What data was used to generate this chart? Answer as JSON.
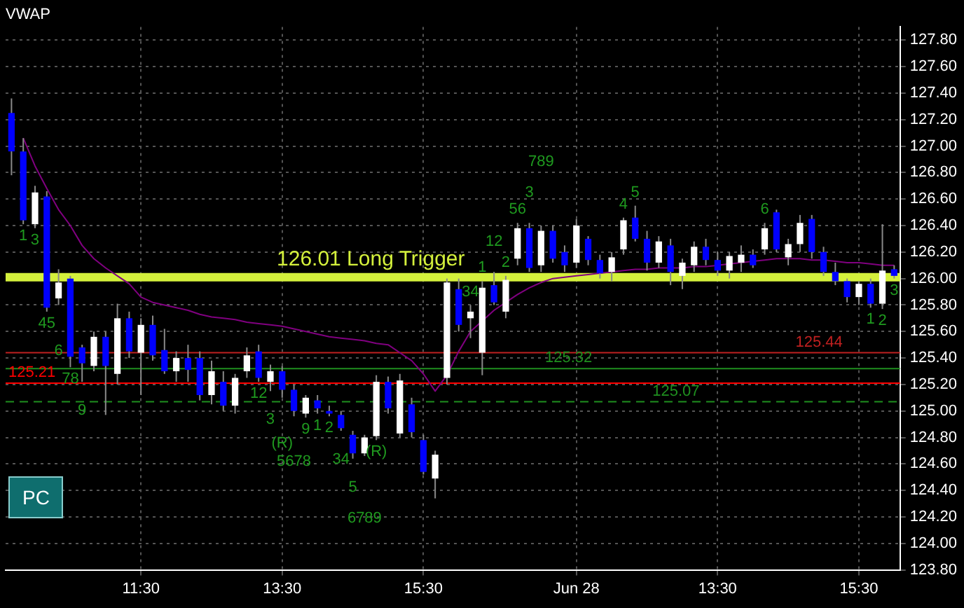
{
  "chart_data": {
    "type": "candlestick",
    "title": "VWAP",
    "categories": [
      null,
      null,
      null,
      null,
      null,
      null,
      null,
      null,
      null,
      null,
      null,
      "11:30",
      null,
      null,
      null,
      null,
      null,
      null,
      null,
      null,
      null,
      null,
      null,
      "13:30",
      null,
      null,
      null,
      null,
      null,
      null,
      null,
      null,
      null,
      null,
      null,
      "15:30",
      null,
      null,
      null,
      null,
      null,
      null,
      null,
      null,
      null,
      null,
      null,
      null,
      "Jun 28",
      null,
      null,
      null,
      null,
      null,
      null,
      null,
      null,
      null,
      null,
      null,
      "13:30",
      null,
      null,
      null,
      null,
      null,
      null,
      null,
      null,
      null,
      null,
      null,
      "15:30",
      null,
      null,
      null
    ],
    "ohlc": [
      [
        127.25,
        127.36,
        126.78,
        126.96
      ],
      [
        126.96,
        127.06,
        126.41,
        126.44
      ],
      [
        126.41,
        126.7,
        126.38,
        126.65
      ],
      [
        126.62,
        126.66,
        125.75,
        125.78
      ],
      [
        125.85,
        126.07,
        125.8,
        125.97
      ],
      [
        126.0,
        126.02,
        125.33,
        125.41
      ],
      [
        125.48,
        125.5,
        125.22,
        125.36
      ],
      [
        125.34,
        125.6,
        125.3,
        125.56
      ],
      [
        125.56,
        125.6,
        124.97,
        125.34
      ],
      [
        125.28,
        125.81,
        125.2,
        125.7
      ],
      [
        125.7,
        125.75,
        125.4,
        125.45
      ],
      [
        125.44,
        125.7,
        125.12,
        125.65
      ],
      [
        125.65,
        125.72,
        125.38,
        125.42
      ],
      [
        125.46,
        125.62,
        125.28,
        125.3
      ],
      [
        125.3,
        125.45,
        125.22,
        125.4
      ],
      [
        125.4,
        125.5,
        125.22,
        125.31
      ],
      [
        125.4,
        125.45,
        125.08,
        125.12
      ],
      [
        125.12,
        125.38,
        125.05,
        125.3
      ],
      [
        125.22,
        125.3,
        125.0,
        125.04
      ],
      [
        125.04,
        125.28,
        124.98,
        125.25
      ],
      [
        125.3,
        125.48,
        125.25,
        125.42
      ],
      [
        125.45,
        125.5,
        125.22,
        125.25
      ],
      [
        125.22,
        125.35,
        125.15,
        125.3
      ],
      [
        125.3,
        125.34,
        125.1,
        125.16
      ],
      [
        125.16,
        125.2,
        124.96,
        125.0
      ],
      [
        124.98,
        125.12,
        124.95,
        125.1
      ],
      [
        125.08,
        125.12,
        124.98,
        125.02
      ],
      [
        125.0,
        125.04,
        124.96,
        124.98
      ],
      [
        124.97,
        125.0,
        124.85,
        124.87
      ],
      [
        124.82,
        124.85,
        124.64,
        124.68
      ],
      [
        124.68,
        124.82,
        124.66,
        124.8
      ],
      [
        124.81,
        125.27,
        124.78,
        125.22
      ],
      [
        125.22,
        125.26,
        124.98,
        125.02
      ],
      [
        124.83,
        125.28,
        124.8,
        125.23
      ],
      [
        125.05,
        125.1,
        124.8,
        124.84
      ],
      [
        124.78,
        124.82,
        124.52,
        124.54
      ],
      [
        124.49,
        124.7,
        124.34,
        124.67
      ],
      [
        125.25,
        126.0,
        125.2,
        125.97
      ],
      [
        125.92,
        126.0,
        125.6,
        125.65
      ],
      [
        125.7,
        125.8,
        125.55,
        125.75
      ],
      [
        125.44,
        125.98,
        125.27,
        125.93
      ],
      [
        125.95,
        126.05,
        125.8,
        125.82
      ],
      [
        125.75,
        126.02,
        125.7,
        125.99
      ],
      [
        126.15,
        126.42,
        126.1,
        126.38
      ],
      [
        126.38,
        126.42,
        126.05,
        126.08
      ],
      [
        126.1,
        126.4,
        126.05,
        126.36
      ],
      [
        126.36,
        126.4,
        126.12,
        126.15
      ],
      [
        126.2,
        126.25,
        126.05,
        126.1
      ],
      [
        126.12,
        126.45,
        126.08,
        126.4
      ],
      [
        126.3,
        126.32,
        126.1,
        126.14
      ],
      [
        126.14,
        126.18,
        126.0,
        126.04
      ],
      [
        126.05,
        126.2,
        125.98,
        126.16
      ],
      [
        126.22,
        126.46,
        126.18,
        126.44
      ],
      [
        126.46,
        126.55,
        126.28,
        126.3
      ],
      [
        126.3,
        126.36,
        126.06,
        126.12
      ],
      [
        126.12,
        126.32,
        126.08,
        126.28
      ],
      [
        126.25,
        126.3,
        125.95,
        126.05
      ],
      [
        126.02,
        126.15,
        125.92,
        126.12
      ],
      [
        126.1,
        126.28,
        126.05,
        126.24
      ],
      [
        126.24,
        126.3,
        126.1,
        126.14
      ],
      [
        126.14,
        126.2,
        126.02,
        126.06
      ],
      [
        126.06,
        126.2,
        126.0,
        126.17
      ],
      [
        126.12,
        126.25,
        126.05,
        126.18
      ],
      [
        126.18,
        126.22,
        126.08,
        126.1
      ],
      [
        126.22,
        126.42,
        126.18,
        126.38
      ],
      [
        126.5,
        126.52,
        126.2,
        126.22
      ],
      [
        126.16,
        126.3,
        126.1,
        126.26
      ],
      [
        126.26,
        126.48,
        126.2,
        126.42
      ],
      [
        126.45,
        126.48,
        126.15,
        126.2
      ],
      [
        126.2,
        126.24,
        126.02,
        126.05
      ],
      [
        126.05,
        126.12,
        125.95,
        125.98
      ],
      [
        125.98,
        126.0,
        125.82,
        125.86
      ],
      [
        125.86,
        125.98,
        125.8,
        125.96
      ],
      [
        125.96,
        126.0,
        125.78,
        125.81
      ],
      [
        125.81,
        126.41,
        125.77,
        126.06
      ],
      [
        126.07,
        126.1,
        126.0,
        126.02
      ]
    ],
    "colors": [
      "#0000ff",
      "#0000ff",
      "#ffffff",
      "#0000ff",
      "#ffffff",
      "#0000ff",
      "#0000ff",
      "#ffffff",
      "#0000ff",
      "#ffffff",
      "#0000ff",
      "#ffffff",
      "#0000ff",
      "#0000ff",
      "#ffffff",
      "#0000ff",
      "#0000ff",
      "#ffffff",
      "#0000ff",
      "#ffffff",
      "#ffffff",
      "#0000ff",
      "#ffffff",
      "#0000ff",
      "#0000ff",
      "#ffffff",
      "#0000ff",
      "#0000ff",
      "#0000ff",
      "#0000ff",
      "#ffffff",
      "#ffffff",
      "#0000ff",
      "#ffffff",
      "#0000ff",
      "#0000ff",
      "#ffffff",
      "#ffffff",
      "#0000ff",
      "#ffffff",
      "#ffffff",
      "#0000ff",
      "#ffffff",
      "#ffffff",
      "#0000ff",
      "#ffffff",
      "#0000ff",
      "#0000ff",
      "#ffffff",
      "#0000ff",
      "#0000ff",
      "#ffffff",
      "#ffffff",
      "#0000ff",
      "#0000ff",
      "#ffffff",
      "#0000ff",
      "#ffffff",
      "#ffffff",
      "#0000ff",
      "#0000ff",
      "#ffffff",
      "#ffffff",
      "#0000ff",
      "#ffffff",
      "#0000ff",
      "#ffffff",
      "#ffffff",
      "#0000ff",
      "#0000ff",
      "#0000ff",
      "#0000ff",
      "#ffffff",
      "#0000ff",
      "#ffffff",
      "#0000ff"
    ],
    "value_labels": [
      null,
      "1",
      "3",
      "45",
      "6",
      "78",
      "9",
      null,
      null,
      null,
      null,
      null,
      null,
      null,
      null,
      null,
      null,
      null,
      null,
      null,
      null,
      "12",
      "3",
      "(R)",
      "5678",
      "9",
      "1",
      "2",
      "34",
      "5",
      "6789",
      "(R)",
      null,
      null,
      null,
      null,
      null,
      null,
      null,
      "34",
      "1",
      "12",
      "2",
      "56",
      "3",
      "789",
      null,
      null,
      null,
      null,
      null,
      null,
      "4",
      "5",
      null,
      null,
      null,
      null,
      null,
      null,
      null,
      null,
      null,
      null,
      "6",
      null,
      null,
      null,
      null,
      null,
      null,
      null,
      null,
      "1",
      "2",
      "3"
    ],
    "series": [
      {
        "type": "line",
        "color": "#800080",
        "values": [
          null,
          127.06,
          126.85,
          126.68,
          126.52,
          126.4,
          126.25,
          126.15,
          126.08,
          126.02,
          125.96,
          125.86,
          125.82,
          125.8,
          125.78,
          125.76,
          125.73,
          125.71,
          125.7,
          125.69,
          125.67,
          125.66,
          125.65,
          125.64,
          125.62,
          125.6,
          125.58,
          125.56,
          125.55,
          125.54,
          125.53,
          125.51,
          125.5,
          125.44,
          125.38,
          125.28,
          125.15,
          125.27,
          125.45,
          125.6,
          125.68,
          125.76,
          125.82,
          125.88,
          125.93,
          125.97,
          126.0,
          126.01,
          126.02,
          126.03,
          126.04,
          126.05,
          126.06,
          126.07,
          126.07,
          126.08,
          126.08,
          126.08,
          126.09,
          126.09,
          126.1,
          126.11,
          126.12,
          126.13,
          126.14,
          126.15,
          126.15,
          126.15,
          126.14,
          126.14,
          126.13,
          126.12,
          126.12,
          126.11,
          126.1,
          126.1
        ]
      }
    ],
    "ylim": [
      123.8,
      127.9
    ],
    "yticks": [
      {
        "value": 123.8,
        "label": "123.80"
      },
      {
        "value": 124.0,
        "label": "124.00"
      },
      {
        "value": 124.2,
        "label": "124.20"
      },
      {
        "value": 124.4,
        "label": "124.40"
      },
      {
        "value": 124.6,
        "label": "124.60"
      },
      {
        "value": 124.8,
        "label": "124.80"
      },
      {
        "value": 125.0,
        "label": "125.00"
      },
      {
        "value": 125.2,
        "label": "125.20"
      },
      {
        "value": 125.4,
        "label": "125.40"
      },
      {
        "value": 125.6,
        "label": "125.60"
      },
      {
        "value": 125.8,
        "label": "125.80"
      },
      {
        "value": 126.0,
        "label": "126.00"
      },
      {
        "value": 126.2,
        "label": "126.20"
      },
      {
        "value": 126.4,
        "label": "126.40"
      },
      {
        "value": 126.6,
        "label": "126.60"
      },
      {
        "value": 126.8,
        "label": "126.80"
      },
      {
        "value": 127.0,
        "label": "127.00"
      },
      {
        "value": 127.2,
        "label": "127.20"
      },
      {
        "value": 127.4,
        "label": "127.40"
      },
      {
        "value": 127.6,
        "label": "127.60"
      },
      {
        "value": 127.8,
        "label": "127.80"
      }
    ],
    "grid": true,
    "legend": false,
    "ref_lines": [
      {
        "axis": "y",
        "value": 126.01,
        "label": "126.01 Long Trigger",
        "color": "#d4f03c"
      },
      {
        "axis": "y",
        "value": 125.21,
        "label": "125.21",
        "color": "#ff0000"
      },
      {
        "axis": "y",
        "value": 125.32,
        "label": "125.32",
        "color": "#1f8f1f"
      },
      {
        "axis": "y",
        "value": 125.07,
        "label": "125.07",
        "color": "#1f8f1f",
        "line_style": "dashed"
      },
      {
        "axis": "y",
        "value": 125.44,
        "label": "125.44",
        "color": "#c02020"
      }
    ],
    "annotations": [
      "PC"
    ]
  }
}
